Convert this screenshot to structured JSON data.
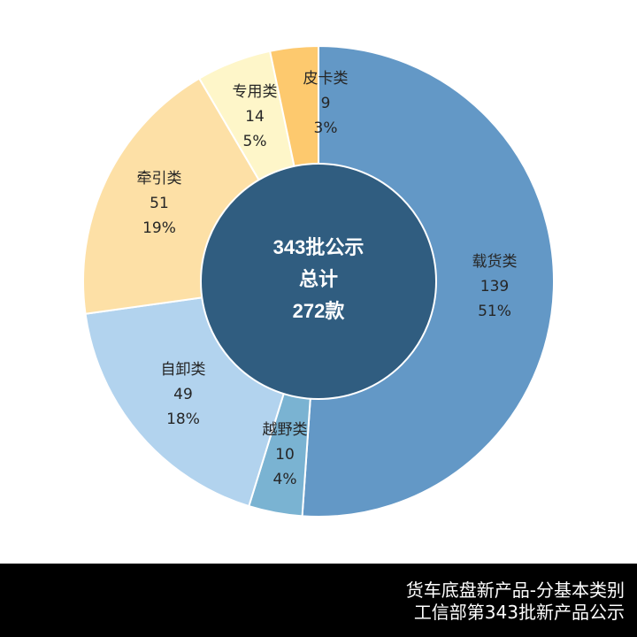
{
  "chart_data": {
    "type": "pie",
    "subtype": "donut",
    "title": "货车底盘新产品-分基本类别",
    "subtitle": "工信部第343批新产品公示",
    "center_label": [
      "343批公示",
      "总计",
      "272款"
    ],
    "total": 272,
    "categories": [
      "载货类",
      "越野类",
      "自卸类",
      "牵引类",
      "专用类",
      "皮卡类"
    ],
    "values": [
      139,
      10,
      49,
      51,
      14,
      9
    ],
    "percents": [
      "51%",
      "4%",
      "18%",
      "19%",
      "5%",
      "3%"
    ],
    "colors": [
      "#6398c6",
      "#7ab3d2",
      "#b2d3ee",
      "#fde0a6",
      "#fef6c9",
      "#fdc96e"
    ],
    "center_color": "#305d80",
    "legend": "none",
    "start_angle_deg": 0,
    "direction": "clockwise"
  },
  "center": {
    "line1": "343批公示",
    "line2": "总计",
    "line3": "272款"
  },
  "labels": [
    {
      "name": "载货类",
      "value": "139",
      "pct": "51%"
    },
    {
      "name": "越野类",
      "value": "10",
      "pct": "4%"
    },
    {
      "name": "自卸类",
      "value": "49",
      "pct": "18%"
    },
    {
      "name": "牵引类",
      "value": "51",
      "pct": "19%"
    },
    {
      "name": "专用类",
      "value": "14",
      "pct": "5%"
    },
    {
      "name": "皮卡类",
      "value": "9",
      "pct": "3%"
    }
  ],
  "footer": {
    "line1": "货车底盘新产品-分基本类别",
    "line2": "工信部第343批新产品公示"
  }
}
